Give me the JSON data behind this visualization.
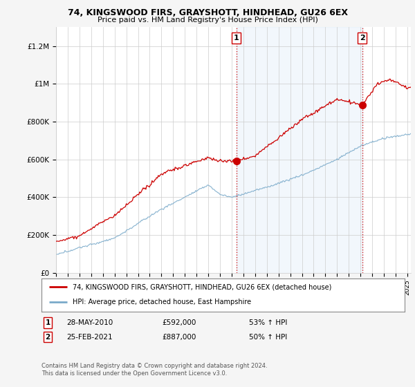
{
  "title_line1": "74, KINGSWOOD FIRS, GRAYSHOTT, HINDHEAD, GU26 6EX",
  "title_line2": "Price paid vs. HM Land Registry's House Price Index (HPI)",
  "ylabel_ticks": [
    "£0",
    "£200K",
    "£400K",
    "£600K",
    "£800K",
    "£1M",
    "£1.2M"
  ],
  "ytick_values": [
    0,
    200000,
    400000,
    600000,
    800000,
    1000000,
    1200000
  ],
  "ylim": [
    0,
    1300000
  ],
  "xlim_start": 1995,
  "xlim_end": 2025.3,
  "sale1_date": 2010.4,
  "sale1_price": 592000,
  "sale2_date": 2021.15,
  "sale2_price": 887000,
  "red_line_color": "#cc0000",
  "blue_line_color": "#7aaaca",
  "shade_color": "#ddeeff",
  "dashed_color": "#cc0000",
  "background_color": "#f5f5f5",
  "plot_bg_color": "#ffffff",
  "legend_line1": "74, KINGSWOOD FIRS, GRAYSHOTT, HINDHEAD, GU26 6EX (detached house)",
  "legend_line2": "HPI: Average price, detached house, East Hampshire",
  "annotation1_date": "28-MAY-2010",
  "annotation1_price": "£592,000",
  "annotation1_hpi": "53% ↑ HPI",
  "annotation2_date": "25-FEB-2021",
  "annotation2_price": "£887,000",
  "annotation2_hpi": "50% ↑ HPI",
  "footnote": "Contains HM Land Registry data © Crown copyright and database right 2024.\nThis data is licensed under the Open Government Licence v3.0."
}
